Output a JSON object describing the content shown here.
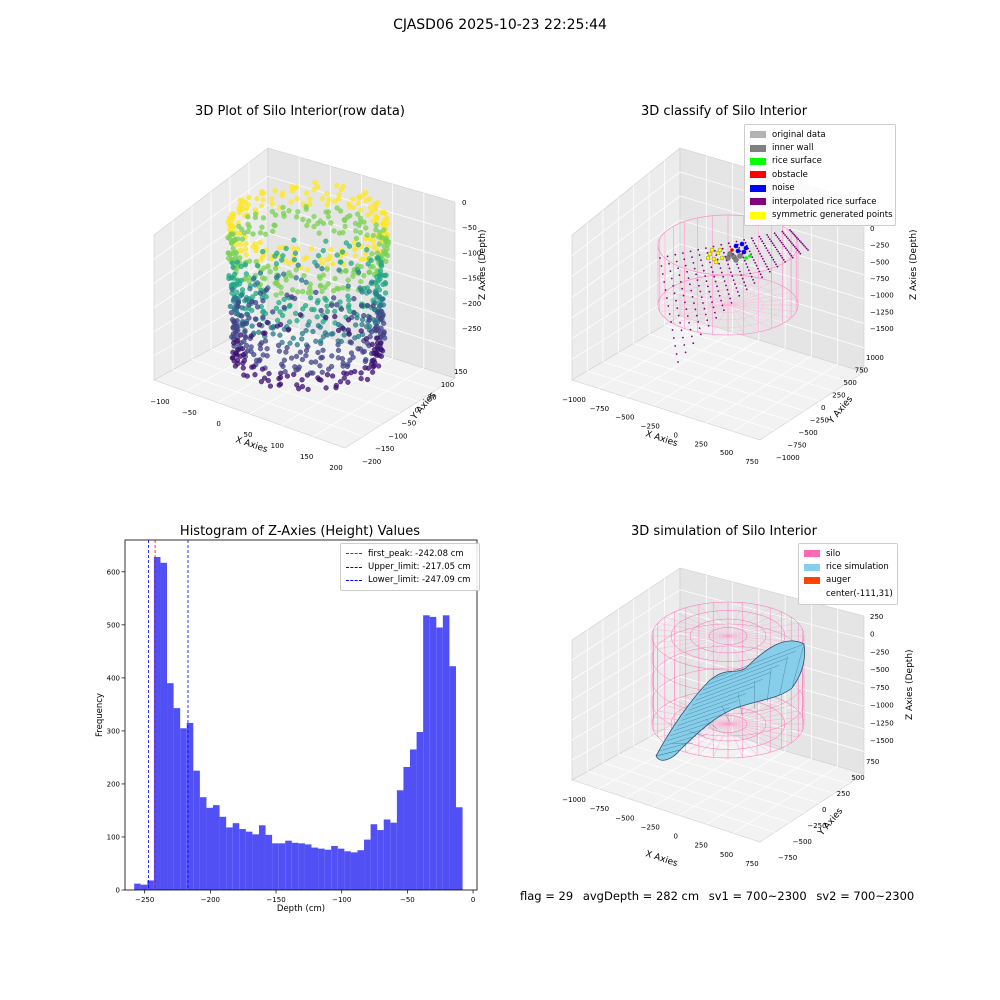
{
  "suptitle": "CJASD06 2025-10-23 22:25:44",
  "panels": {
    "raw": {
      "title": "3D Plot of Silo Interior(row data)",
      "xlabel": "X Axies",
      "ylabel": "Y Axies",
      "zlabel": "Z Axies (Depth)",
      "xticks": [
        "−100",
        "−50",
        "0",
        "50",
        "100",
        "150",
        "200"
      ],
      "yticks": [
        "150",
        "100",
        "50",
        "0",
        "−50",
        "−100",
        "−150",
        "−200"
      ],
      "zticks": [
        "0",
        "−50",
        "−100",
        "−150",
        "−200",
        "−250"
      ]
    },
    "classify": {
      "title": "3D classify of Silo Interior",
      "xlabel": "X Axies",
      "ylabel": "Y Axies",
      "zlabel": "Z Axies (Depth)",
      "xticks": [
        "−1000",
        "−750",
        "−500",
        "−250",
        "0",
        "250",
        "500",
        "750"
      ],
      "yticks": [
        "1000",
        "750",
        "500",
        "250",
        "0",
        "−250",
        "−500",
        "−750",
        "−1000"
      ],
      "zticks": [
        "0",
        "−250",
        "−500",
        "−750",
        "−1000",
        "−1250",
        "−1500"
      ],
      "legend": [
        {
          "label": "original data",
          "color": "#b3b3b3"
        },
        {
          "label": "inner wall",
          "color": "#808080"
        },
        {
          "label": "rice surface",
          "color": "#00ff00"
        },
        {
          "label": "obstacle",
          "color": "#ff0000"
        },
        {
          "label": "noise",
          "color": "#0000ff"
        },
        {
          "label": "interpolated rice surface",
          "color": "#800080"
        },
        {
          "label": "symmetric generated points",
          "color": "#ffff00"
        }
      ]
    },
    "simulation": {
      "title": "3D simulation of Silo Interior",
      "xlabel": "X Axies",
      "ylabel": "Y Axies",
      "zlabel": "Z Axies (Depth)",
      "xticks": [
        "−1000",
        "−750",
        "−500",
        "−250",
        "0",
        "250",
        "500",
        "750"
      ],
      "yticks": [
        "750",
        "500",
        "250",
        "0",
        "−250",
        "−500",
        "−750"
      ],
      "zticks": [
        "250",
        "0",
        "−250",
        "−500",
        "−750",
        "−1000",
        "−1250",
        "−1500"
      ],
      "legend": [
        {
          "label": "silo",
          "color": "#ff69b4"
        },
        {
          "label": "rice simulation",
          "color": "#87ceeb"
        },
        {
          "label": "auger",
          "color": "#ff4500"
        },
        {
          "label": "center(-111,31)",
          "color": ""
        }
      ]
    }
  },
  "chart_data": {
    "type": "bar",
    "title": "Histogram of Z-Axies (Height) Values",
    "xlabel": "Depth (cm)",
    "ylabel": "Frequency",
    "xlim": [
      -265,
      3
    ],
    "ylim": [
      0,
      660
    ],
    "xticks": [
      -250,
      -200,
      -150,
      -100,
      -50,
      0
    ],
    "yticks": [
      0,
      100,
      200,
      300,
      400,
      500,
      600
    ],
    "bin_start": -258,
    "bin_width": 5,
    "values": [
      12,
      10,
      18,
      628,
      617,
      390,
      343,
      305,
      315,
      225,
      175,
      155,
      160,
      138,
      118,
      126,
      115,
      110,
      105,
      122,
      104,
      88,
      88,
      93,
      89,
      88,
      86,
      80,
      78,
      76,
      83,
      78,
      73,
      71,
      75,
      95,
      124,
      113,
      133,
      127,
      188,
      232,
      265,
      298,
      518,
      515,
      495,
      518,
      422,
      156
    ],
    "bar_color": "#5050f5",
    "lines": [
      {
        "label": "first_peak: -242.08 cm",
        "x": -242.08,
        "color": "#ff0000"
      },
      {
        "label": "Upper_limit: -217.05 cm",
        "x": -217.05,
        "color": "#0000ff"
      },
      {
        "label": "Lower_limit: -247.09 cm",
        "x": -247.09,
        "color": "#0000ff"
      }
    ],
    "legend_position": "top-right"
  },
  "footer": {
    "flag": "flag = 29",
    "avg": "avgDepth = 282 cm",
    "sv1": "sv1 = 700~2300",
    "sv2": "sv2 = 700~2300"
  }
}
